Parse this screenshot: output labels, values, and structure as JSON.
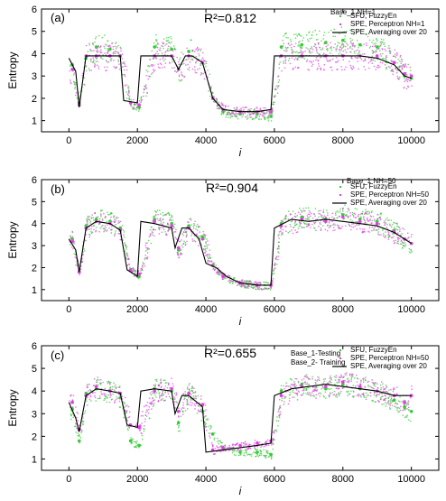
{
  "chart_data": [
    {
      "type": "scatter",
      "panel_label": "(a)",
      "annotation": "R²=0.812",
      "note": [
        "Base_1 NH=1"
      ],
      "xlabel": "i",
      "ylabel": "Entropy",
      "xlim": [
        -800,
        10800
      ],
      "ylim": [
        0.5,
        6
      ],
      "xticks": [
        "0",
        "2000",
        "4000",
        "6000",
        "8000",
        "10000"
      ],
      "yticks": [
        "1",
        "2",
        "3",
        "4",
        "5",
        "6"
      ],
      "legend": [
        "SFU, FuzzyEn",
        "SPE, Perceptron NH=1",
        "SPE, Averaging over 20"
      ],
      "series": [
        {
          "name": "SFU, FuzzyEn",
          "color": "#33cc33",
          "x": [
            100,
            300,
            500,
            800,
            1200,
            1500,
            1800,
            2050,
            2500,
            3000,
            3200,
            3500,
            3900,
            4200,
            4500,
            5000,
            5500,
            5900,
            6200,
            6800,
            7500,
            8000,
            8500,
            9000,
            9500,
            9800,
            10000
          ],
          "y": [
            3.5,
            1.8,
            3.8,
            4.3,
            4.2,
            3.9,
            1.8,
            1.6,
            4.3,
            4.2,
            3.3,
            4.1,
            3.6,
            2.0,
            1.4,
            1.3,
            1.3,
            1.2,
            4.3,
            4.4,
            4.5,
            4.6,
            4.4,
            4.3,
            3.6,
            3.0,
            2.9
          ]
        },
        {
          "name": "SPE, Perceptron NH=1",
          "color": "#e040e0",
          "x": [
            100,
            300,
            500,
            800,
            1200,
            1500,
            1800,
            2050,
            2500,
            3000,
            3200,
            3500,
            3900,
            4200,
            4500,
            5000,
            5500,
            5900,
            6200,
            6800,
            7500,
            8000,
            8500,
            9000,
            9500,
            9800,
            10000
          ],
          "y": [
            3.3,
            1.7,
            3.9,
            3.9,
            3.9,
            3.9,
            1.8,
            1.7,
            3.9,
            3.9,
            3.3,
            3.9,
            3.6,
            2.0,
            1.5,
            1.4,
            1.4,
            1.4,
            3.9,
            3.9,
            3.9,
            3.9,
            3.9,
            3.9,
            3.6,
            3.1,
            3.0
          ]
        },
        {
          "name": "SPE, Averaging over 20",
          "color": "#000000",
          "x": [
            0,
            200,
            300,
            500,
            1000,
            1500,
            1600,
            2000,
            2100,
            2500,
            3000,
            3200,
            3400,
            3600,
            3900,
            4200,
            4500,
            5000,
            5500,
            5900,
            6000,
            6500,
            7000,
            7500,
            8000,
            8500,
            9000,
            9500,
            9800,
            10000
          ],
          "y": [
            3.8,
            3.2,
            1.6,
            3.9,
            3.9,
            3.9,
            1.9,
            1.8,
            3.9,
            3.9,
            3.9,
            3.3,
            3.9,
            3.9,
            3.6,
            2.0,
            1.5,
            1.4,
            1.4,
            1.5,
            3.9,
            3.9,
            3.9,
            3.9,
            3.9,
            3.9,
            3.8,
            3.5,
            3.0,
            2.9
          ]
        }
      ]
    },
    {
      "type": "scatter",
      "panel_label": "(b)",
      "annotation": "R²=0.904",
      "note": [
        "Base_1 NH=50"
      ],
      "xlabel": "i",
      "ylabel": "Entropy",
      "xlim": [
        -800,
        10800
      ],
      "ylim": [
        0.5,
        6
      ],
      "xticks": [
        "0",
        "2000",
        "4000",
        "6000",
        "8000",
        "10000"
      ],
      "yticks": [
        "1",
        "2",
        "3",
        "4",
        "5",
        "6"
      ],
      "legend": [
        "SFU, FuzzyEn",
        "SPE, Perceptron NH=50",
        "SPE, Averaging over 20"
      ],
      "series": [
        {
          "name": "SFU, FuzzyEn",
          "color": "#33cc33",
          "x": [
            100,
            300,
            500,
            800,
            1200,
            1500,
            1800,
            2050,
            2500,
            3000,
            3200,
            3500,
            3900,
            4200,
            4500,
            5000,
            5500,
            5900,
            6200,
            6800,
            7500,
            8000,
            8500,
            9000,
            9500,
            9800,
            10000
          ],
          "y": [
            3.3,
            1.8,
            3.9,
            4.2,
            4.1,
            3.8,
            1.9,
            1.6,
            4.2,
            4.0,
            2.8,
            3.9,
            3.4,
            2.1,
            1.6,
            1.3,
            1.2,
            1.2,
            4.0,
            4.3,
            4.2,
            4.4,
            4.2,
            4.1,
            3.7,
            3.3,
            3.1
          ]
        },
        {
          "name": "SPE, Perceptron NH=50",
          "color": "#e040e0",
          "x": [
            100,
            300,
            500,
            800,
            1200,
            1500,
            1800,
            2050,
            2500,
            3000,
            3200,
            3500,
            3900,
            4200,
            4500,
            5000,
            5500,
            5900,
            6200,
            6800,
            7500,
            8000,
            8500,
            9000,
            9500,
            9800,
            10000
          ],
          "y": [
            3.2,
            1.8,
            3.8,
            4.1,
            4.0,
            3.7,
            1.9,
            1.7,
            4.1,
            3.9,
            2.9,
            3.8,
            3.3,
            2.1,
            1.6,
            1.3,
            1.2,
            1.2,
            3.9,
            4.2,
            4.1,
            4.3,
            4.1,
            4.0,
            3.6,
            3.3,
            3.1
          ]
        },
        {
          "name": "SPE, Averaging over 20",
          "color": "#000000",
          "x": [
            0,
            200,
            300,
            500,
            800,
            1200,
            1500,
            1700,
            2000,
            2100,
            2500,
            3000,
            3100,
            3300,
            3500,
            3800,
            4000,
            4300,
            4600,
            5000,
            5500,
            5900,
            6000,
            6500,
            7000,
            7500,
            8000,
            8500,
            9000,
            9500,
            10000
          ],
          "y": [
            3.3,
            2.8,
            1.8,
            3.8,
            4.1,
            4.0,
            3.7,
            1.9,
            1.6,
            4.1,
            4.0,
            3.8,
            2.9,
            3.8,
            3.8,
            3.3,
            2.2,
            2.0,
            1.6,
            1.3,
            1.2,
            1.2,
            3.8,
            4.2,
            4.1,
            4.2,
            4.1,
            4.0,
            3.9,
            3.6,
            3.1
          ]
        }
      ]
    },
    {
      "type": "scatter",
      "panel_label": "(c)",
      "annotation": "R²=0.655",
      "note": [
        "Base_1-Testing",
        "Base_2- Training"
      ],
      "xlabel": "i",
      "ylabel": "Entropy",
      "xlim": [
        -800,
        10800
      ],
      "ylim": [
        0.5,
        6
      ],
      "xticks": [
        "0",
        "2000",
        "4000",
        "6000",
        "8000",
        "10000"
      ],
      "yticks": [
        "1",
        "2",
        "3",
        "4",
        "5",
        "6"
      ],
      "legend": [
        "SFU, FuzzyEn",
        "SPE, Perceptron NH=50",
        "SPE, Averaging over 20"
      ],
      "series": [
        {
          "name": "SFU, FuzzyEn",
          "color": "#33cc33",
          "x": [
            100,
            300,
            500,
            800,
            1200,
            1500,
            1800,
            2050,
            2500,
            3000,
            3200,
            3500,
            3900,
            4200,
            4500,
            5000,
            5500,
            5900,
            6200,
            6800,
            7500,
            8000,
            8500,
            9000,
            9500,
            9800,
            10000
          ],
          "y": [
            3.2,
            1.8,
            3.9,
            4.1,
            4.0,
            3.7,
            1.8,
            1.6,
            4.1,
            4.0,
            2.6,
            3.9,
            3.1,
            2.1,
            1.5,
            1.3,
            1.3,
            1.2,
            4.0,
            4.3,
            4.1,
            4.3,
            4.1,
            4.0,
            3.6,
            3.3,
            3.1
          ]
        },
        {
          "name": "SPE, Perceptron NH=50",
          "color": "#e040e0",
          "x": [
            100,
            300,
            500,
            800,
            1200,
            1500,
            1800,
            2050,
            2500,
            3000,
            3200,
            3500,
            3900,
            4200,
            4500,
            5000,
            5500,
            5900,
            6200,
            6800,
            7500,
            8000,
            8500,
            9000,
            9500,
            9800,
            10000
          ],
          "y": [
            3.5,
            2.3,
            3.8,
            4.2,
            4.0,
            3.9,
            2.5,
            2.4,
            4.0,
            4.1,
            3.1,
            3.9,
            3.4,
            1.4,
            1.5,
            1.6,
            1.7,
            1.8,
            3.8,
            4.2,
            4.2,
            4.4,
            4.2,
            4.0,
            3.8,
            3.5,
            3.8
          ]
        },
        {
          "name": "SPE, Averaging over 20",
          "color": "#000000",
          "x": [
            0,
            200,
            300,
            500,
            800,
            1200,
            1500,
            1700,
            2000,
            2100,
            2500,
            3000,
            3100,
            3300,
            3500,
            3900,
            4000,
            4500,
            5000,
            5500,
            5900,
            6000,
            6500,
            7000,
            7500,
            8000,
            8500,
            9000,
            9500,
            10000
          ],
          "y": [
            3.5,
            2.8,
            2.2,
            3.8,
            4.1,
            4.0,
            3.9,
            2.5,
            2.4,
            4.0,
            4.1,
            4.0,
            3.0,
            3.8,
            3.8,
            3.3,
            1.3,
            1.4,
            1.5,
            1.6,
            1.7,
            3.8,
            4.1,
            4.2,
            4.3,
            4.2,
            4.1,
            4.0,
            3.8,
            3.8
          ]
        }
      ]
    }
  ]
}
